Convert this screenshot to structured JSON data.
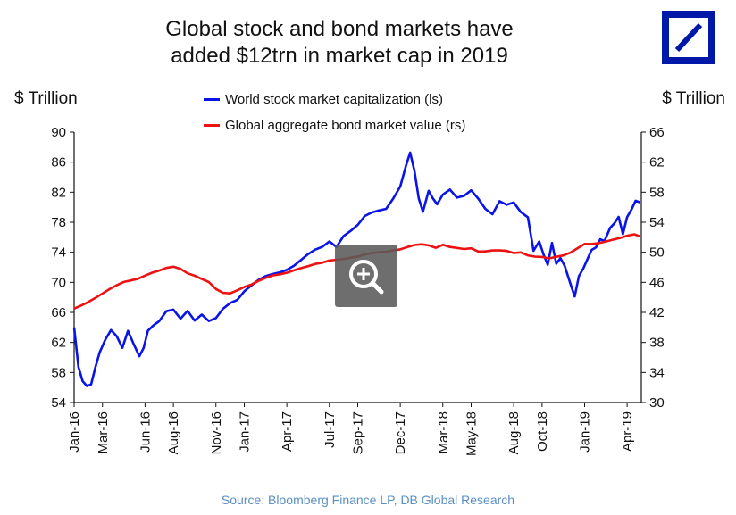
{
  "title_lines": [
    "Global stock and bond markets have",
    "added $12trn in market cap in 2019"
  ],
  "source": "Source: Bloomberg Finance LP, DB Global Research",
  "zoom": {
    "icon": "zoom-in-icon"
  },
  "chart_data": {
    "type": "line",
    "title": "Global stock and bond markets have added $12trn in market cap in 2019",
    "ylabel_left": "$ Trillion",
    "ylabel_right": "$ Trillion",
    "yticks_left": [
      "90",
      "86",
      "82",
      "78",
      "74",
      "70",
      "66",
      "62",
      "58",
      "54"
    ],
    "yticks_right": [
      "66",
      "62",
      "58",
      "54",
      "50",
      "46",
      "42",
      "38",
      "34",
      "30"
    ],
    "ylim_left": [
      54,
      90
    ],
    "ylim_right": [
      30,
      66
    ],
    "xlim": [
      0,
      40
    ],
    "xticks": [
      {
        "label": "Jan-16",
        "x": 0
      },
      {
        "label": "Mar-16",
        "x": 2
      },
      {
        "label": "Jun-16",
        "x": 5
      },
      {
        "label": "Aug-16",
        "x": 7
      },
      {
        "label": "Nov-16",
        "x": 10
      },
      {
        "label": "Jan-17",
        "x": 12
      },
      {
        "label": "Apr-17",
        "x": 15
      },
      {
        "label": "Jul-17",
        "x": 18
      },
      {
        "label": "Sep-17",
        "x": 20
      },
      {
        "label": "Dec-17",
        "x": 23
      },
      {
        "label": "Mar-18",
        "x": 26
      },
      {
        "label": "May-18",
        "x": 28
      },
      {
        "label": "Aug-18",
        "x": 31
      },
      {
        "label": "Oct-18",
        "x": 33
      },
      {
        "label": "Jan-19",
        "x": 36
      },
      {
        "label": "Apr-19",
        "x": 39
      }
    ],
    "series": [
      {
        "name": "World stock market capitalization (ls)",
        "axis": "left",
        "color": "#0a14e8",
        "x": [
          0,
          0.3,
          0.6,
          0.9,
          1.2,
          1.5,
          1.8,
          2.2,
          2.6,
          3.0,
          3.4,
          3.8,
          4.2,
          4.6,
          4.9,
          5.2,
          5.6,
          6.0,
          6.5,
          7.0,
          7.5,
          8.0,
          8.5,
          9.0,
          9.5,
          10.0,
          10.5,
          11.0,
          11.5,
          12.0,
          12.5,
          13.0,
          13.5,
          14.0,
          14.5,
          15.0,
          15.5,
          16.0,
          16.5,
          17.0,
          17.5,
          18.0,
          18.5,
          19.0,
          19.5,
          20.0,
          20.5,
          21.0,
          21.5,
          22.0,
          22.5,
          23.0,
          23.4,
          23.7,
          24.0,
          24.3,
          24.6,
          25.0,
          25.3,
          25.6,
          26.0,
          26.5,
          27.0,
          27.5,
          28.0,
          28.5,
          29.0,
          29.5,
          30.0,
          30.5,
          31.0,
          31.5,
          32.0,
          32.4,
          32.8,
          33.1,
          33.4,
          33.7,
          34.0,
          34.3,
          34.6,
          35.0,
          35.3,
          35.6,
          35.9,
          36.2,
          36.5,
          36.8,
          37.1,
          37.4,
          37.8,
          38.1,
          38.4,
          38.7,
          39.0,
          39.3,
          39.6,
          39.9
        ],
        "values": [
          64.0,
          58.5,
          56.5,
          56.0,
          56.5,
          59.0,
          61.0,
          62.5,
          63.5,
          62.5,
          61.0,
          63.5,
          62.0,
          60.5,
          61.5,
          63.5,
          64.0,
          64.5,
          66.0,
          66.5,
          65.5,
          66.5,
          65.0,
          65.5,
          64.5,
          65.0,
          66.5,
          67.5,
          68.0,
          69.0,
          69.5,
          70.0,
          70.5,
          71.0,
          71.5,
          72.0,
          72.5,
          73.0,
          73.5,
          74.0,
          74.5,
          75.5,
          75.0,
          76.5,
          77.0,
          77.5,
          78.5,
          79.0,
          79.5,
          80.0,
          81.5,
          83.0,
          85.5,
          87.0,
          84.5,
          81.0,
          79.5,
          82.5,
          81.5,
          80.5,
          81.5,
          82.0,
          81.0,
          81.5,
          82.5,
          81.5,
          80.0,
          79.0,
          80.5,
          80.0,
          80.5,
          79.5,
          79.0,
          74.5,
          75.5,
          73.5,
          72.0,
          75.0,
          72.5,
          73.5,
          72.5,
          70.0,
          68.0,
          70.5,
          71.5,
          73.0,
          74.5,
          75.0,
          76.0,
          75.5,
          77.0,
          77.5,
          78.5,
          76.5,
          79.0,
          80.0,
          81.0,
          80.5
        ]
      },
      {
        "name": "Global aggregate bond market value (rs)",
        "axis": "right",
        "color": "#ee1111",
        "x": [
          0,
          0.5,
          1.0,
          1.5,
          2.0,
          2.5,
          3.0,
          3.5,
          4.0,
          4.5,
          5.0,
          5.5,
          6.0,
          6.5,
          7.0,
          7.5,
          8.0,
          8.5,
          9.0,
          9.5,
          10.0,
          10.5,
          11.0,
          11.5,
          12.0,
          12.5,
          13.0,
          13.5,
          14.0,
          14.5,
          15.0,
          15.5,
          16.0,
          16.5,
          17.0,
          17.5,
          18.0,
          18.5,
          19.0,
          19.5,
          20.0,
          20.5,
          21.0,
          21.5,
          22.0,
          22.5,
          23.0,
          23.5,
          24.0,
          24.5,
          25.0,
          25.5,
          26.0,
          26.5,
          27.0,
          27.5,
          28.0,
          28.5,
          29.0,
          29.5,
          30.0,
          30.5,
          31.0,
          31.5,
          32.0,
          32.5,
          33.0,
          33.5,
          34.0,
          34.5,
          35.0,
          35.5,
          36.0,
          36.5,
          37.0,
          37.5,
          38.0,
          38.5,
          39.0,
          39.5,
          39.9
        ],
        "values": [
          42.5,
          43.0,
          43.5,
          44.0,
          44.5,
          45.0,
          45.5,
          46.0,
          46.3,
          46.6,
          47.0,
          47.3,
          47.5,
          47.8,
          48.0,
          47.8,
          47.3,
          47.0,
          46.5,
          46.0,
          45.0,
          44.5,
          44.5,
          45.0,
          45.5,
          45.8,
          46.2,
          46.5,
          46.8,
          47.0,
          47.3,
          47.7,
          48.0,
          48.2,
          48.4,
          48.5,
          48.8,
          49.0,
          49.2,
          49.4,
          49.5,
          49.7,
          49.8,
          49.9,
          50.0,
          50.3,
          50.5,
          50.8,
          51.0,
          51.0,
          50.8,
          50.5,
          51.0,
          50.8,
          50.7,
          50.5,
          50.5,
          50.0,
          50.0,
          50.2,
          50.3,
          50.3,
          50.0,
          50.0,
          49.5,
          49.3,
          49.3,
          49.2,
          49.5,
          49.7,
          50.0,
          50.5,
          51.0,
          51.0,
          51.2,
          51.5,
          51.8,
          52.0,
          52.2,
          52.3,
          52.0
        ]
      }
    ]
  }
}
